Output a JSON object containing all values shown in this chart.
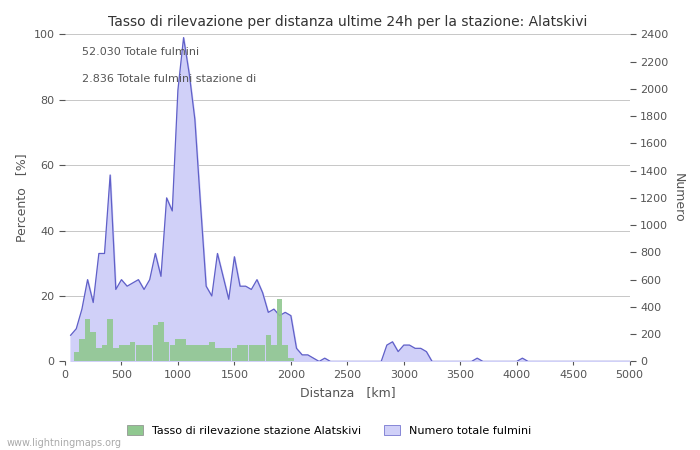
{
  "title": "Tasso di rilevazione per distanza ultime 24h per la stazione: Alatskivi",
  "xlabel": "Distanza   [km]",
  "ylabel_left": "Percento   [%]",
  "ylabel_right": "Numero",
  "annotation_line1": "52.030 Totale fulmini",
  "annotation_line2": "2.836 Totale fulmini stazione di",
  "xlim": [
    0,
    5000
  ],
  "ylim_left": [
    0,
    100
  ],
  "ylim_right": [
    0,
    2400
  ],
  "xticks": [
    0,
    500,
    1000,
    1500,
    2000,
    2500,
    3000,
    3500,
    4000,
    4500,
    5000
  ],
  "yticks_left": [
    0,
    20,
    40,
    60,
    80,
    100
  ],
  "yticks_right": [
    0,
    200,
    400,
    600,
    800,
    1000,
    1200,
    1400,
    1600,
    1800,
    2000,
    2200,
    2400
  ],
  "legend_green_label": "Tasso di rilevazione stazione Alatskivi",
  "legend_blue_label": "Numero totale fulmini",
  "watermark": "www.lightningmaps.org",
  "background_color": "#ffffff",
  "grid_color": "#b0b0b0",
  "bar_color_green": "#90c890",
  "fill_color_blue": "#d0d0f8",
  "line_color_blue": "#6060c8",
  "dist_green": [
    50,
    100,
    150,
    200,
    250,
    300,
    350,
    400,
    450,
    500,
    550,
    600,
    650,
    700,
    750,
    800,
    850,
    900,
    950,
    1000,
    1050,
    1100,
    1150,
    1200,
    1250,
    1300,
    1350,
    1400,
    1450,
    1500,
    1550,
    1600,
    1650,
    1700,
    1750,
    1800,
    1850,
    1900,
    1950,
    2000,
    2050,
    2100,
    2150,
    2200,
    2250,
    2300,
    2350,
    2400,
    2450,
    2500,
    2550,
    2600,
    2650,
    2700,
    2750,
    2800,
    2850,
    2900,
    2950,
    3000,
    3050,
    3100,
    3150,
    3200,
    3250,
    3300,
    3350,
    3400,
    3450,
    3500,
    3550,
    3600,
    3650,
    3700,
    3750,
    3800,
    3850,
    3900,
    3950,
    4000,
    4050,
    4100,
    4150,
    4200,
    4250,
    4300,
    4350,
    4400,
    4450,
    4500,
    4550,
    4600,
    4650,
    4700,
    4750,
    4800,
    4850,
    4900,
    4950,
    5000
  ],
  "vals_green": [
    0,
    3,
    7,
    13,
    9,
    4,
    5,
    13,
    4,
    5,
    5,
    6,
    5,
    5,
    5,
    11,
    12,
    6,
    5,
    7,
    7,
    5,
    5,
    5,
    5,
    6,
    4,
    4,
    4,
    4,
    5,
    5,
    5,
    5,
    5,
    8,
    5,
    19,
    5,
    1,
    0,
    0,
    0,
    0,
    0,
    0,
    0,
    0,
    0,
    0,
    0,
    0,
    0,
    0,
    0,
    0,
    0,
    0,
    0,
    0,
    0,
    0,
    0,
    0,
    0,
    0,
    0,
    0,
    0,
    0,
    0,
    0,
    0,
    0,
    0,
    0,
    0,
    0,
    0,
    0,
    0,
    0,
    0,
    0,
    0,
    0,
    0,
    0,
    0,
    0,
    0,
    0,
    0,
    0,
    0,
    0,
    0,
    0,
    0,
    0
  ],
  "dist_blue": [
    50,
    100,
    150,
    200,
    250,
    300,
    350,
    400,
    450,
    500,
    550,
    600,
    650,
    700,
    750,
    800,
    850,
    900,
    950,
    1000,
    1050,
    1100,
    1150,
    1200,
    1250,
    1300,
    1350,
    1400,
    1450,
    1500,
    1550,
    1600,
    1650,
    1700,
    1750,
    1800,
    1850,
    1900,
    1950,
    2000,
    2050,
    2100,
    2150,
    2200,
    2250,
    2300,
    2350,
    2400,
    2450,
    2500,
    2550,
    2600,
    2650,
    2700,
    2750,
    2800,
    2850,
    2900,
    2950,
    3000,
    3050,
    3100,
    3150,
    3200,
    3250,
    3300,
    3350,
    3400,
    3450,
    3500,
    3550,
    3600,
    3650,
    3700,
    3750,
    3800,
    3850,
    3900,
    3950,
    4000,
    4050,
    4100,
    4150,
    4200,
    4250,
    4300,
    4350,
    4400,
    4450,
    4500,
    4550,
    4600,
    4650,
    4700,
    4750,
    4800,
    4850,
    4900,
    4950,
    5000
  ],
  "vals_blue_pct": [
    8,
    10,
    16,
    25,
    18,
    33,
    33,
    57,
    22,
    25,
    23,
    24,
    25,
    22,
    25,
    33,
    26,
    50,
    46,
    83,
    99,
    88,
    74,
    48,
    23,
    20,
    33,
    26,
    19,
    32,
    23,
    23,
    22,
    25,
    21,
    15,
    16,
    14,
    15,
    14,
    4,
    2,
    2,
    1,
    0,
    1,
    0,
    0,
    0,
    0,
    0,
    0,
    0,
    0,
    0,
    0,
    5,
    6,
    3,
    5,
    5,
    4,
    4,
    3,
    0,
    0,
    0,
    0,
    0,
    0,
    0,
    0,
    1,
    0,
    0,
    0,
    0,
    0,
    0,
    0,
    1,
    0,
    0,
    0,
    0,
    0,
    0,
    0,
    0,
    0,
    0,
    0,
    0,
    0,
    0,
    0,
    0,
    0,
    0,
    0
  ]
}
